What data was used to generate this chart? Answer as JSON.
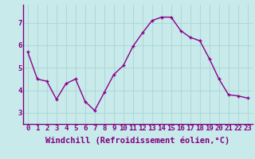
{
  "x": [
    0,
    1,
    2,
    3,
    4,
    5,
    6,
    7,
    8,
    9,
    10,
    11,
    12,
    13,
    14,
    15,
    16,
    17,
    18,
    19,
    20,
    21,
    22,
    23
  ],
  "y": [
    5.7,
    4.5,
    4.4,
    3.6,
    4.3,
    4.5,
    3.5,
    3.1,
    3.9,
    4.7,
    5.1,
    5.95,
    6.55,
    7.1,
    7.25,
    7.25,
    6.65,
    6.35,
    6.2,
    5.4,
    4.5,
    3.8,
    3.75,
    3.65
  ],
  "line_color": "#8B008B",
  "marker": "+",
  "marker_size": 3,
  "bg_color": "#c8eaea",
  "grid_color": "#b0d8d8",
  "xlabel": "Windchill (Refroidissement éolien,°C)",
  "xlabel_fontsize": 7.5,
  "ylim": [
    2.5,
    7.8
  ],
  "xlim": [
    -0.5,
    23.5
  ],
  "yticks": [
    3,
    4,
    5,
    6,
    7
  ],
  "xticks": [
    0,
    1,
    2,
    3,
    4,
    5,
    6,
    7,
    8,
    9,
    10,
    11,
    12,
    13,
    14,
    15,
    16,
    17,
    18,
    19,
    20,
    21,
    22,
    23
  ],
  "tick_fontsize": 6.5,
  "line_width": 1.0,
  "label_color": "#800080",
  "spine_color": "#800080"
}
